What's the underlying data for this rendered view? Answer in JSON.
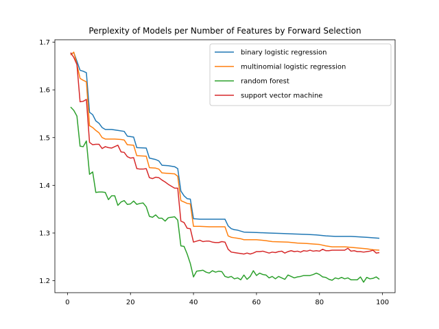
{
  "chart_data": {
    "type": "line",
    "title": "Perplexity of Models per Number of Features by Forward Selection",
    "xlabel": "",
    "ylabel": "",
    "xlim": [
      -4,
      104
    ],
    "ylim": [
      1.175,
      1.705
    ],
    "xticks": [
      0,
      20,
      40,
      60,
      80,
      100
    ],
    "yticks": [
      1.2,
      1.3,
      1.4,
      1.5,
      1.6,
      1.7
    ],
    "xtick_labels": [
      "0",
      "20",
      "40",
      "60",
      "80",
      "100"
    ],
    "ytick_labels": [
      "1.2",
      "1.3",
      "1.4",
      "1.5",
      "1.6",
      "1.7"
    ],
    "grid": false,
    "legend_position": "upper right",
    "series": [
      {
        "name": "binary logistic regression",
        "color": "#1f77b4",
        "points": [
          [
            1,
            1.675
          ],
          [
            2,
            1.678
          ],
          [
            3,
            1.66
          ],
          [
            4,
            1.641
          ],
          [
            5,
            1.639
          ],
          [
            6,
            1.636
          ],
          [
            7,
            1.553
          ],
          [
            8,
            1.548
          ],
          [
            9,
            1.535
          ],
          [
            10,
            1.53
          ],
          [
            11,
            1.521
          ],
          [
            12,
            1.517
          ],
          [
            14,
            1.517
          ],
          [
            16,
            1.515
          ],
          [
            18,
            1.513
          ],
          [
            19,
            1.503
          ],
          [
            21,
            1.501
          ],
          [
            22,
            1.479
          ],
          [
            25,
            1.478
          ],
          [
            26,
            1.457
          ],
          [
            28,
            1.454
          ],
          [
            29,
            1.451
          ],
          [
            30,
            1.442
          ],
          [
            32,
            1.441
          ],
          [
            34,
            1.439
          ],
          [
            35,
            1.435
          ],
          [
            36,
            1.388
          ],
          [
            37,
            1.378
          ],
          [
            38,
            1.372
          ],
          [
            39,
            1.371
          ],
          [
            40,
            1.33
          ],
          [
            42,
            1.329
          ],
          [
            45,
            1.329
          ],
          [
            48,
            1.329
          ],
          [
            50,
            1.329
          ],
          [
            51,
            1.315
          ],
          [
            52,
            1.309
          ],
          [
            53,
            1.307
          ],
          [
            54,
            1.306
          ],
          [
            55,
            1.304
          ],
          [
            56,
            1.302
          ],
          [
            60,
            1.301
          ],
          [
            64,
            1.3
          ],
          [
            68,
            1.299
          ],
          [
            72,
            1.298
          ],
          [
            76,
            1.297
          ],
          [
            79,
            1.296
          ],
          [
            82,
            1.294
          ],
          [
            85,
            1.293
          ],
          [
            90,
            1.293
          ],
          [
            95,
            1.291
          ],
          [
            99,
            1.289
          ]
        ]
      },
      {
        "name": "multinomial logistic regression",
        "color": "#ff7f0e",
        "points": [
          [
            1,
            1.673
          ],
          [
            2,
            1.679
          ],
          [
            3,
            1.653
          ],
          [
            4,
            1.624
          ],
          [
            5,
            1.62
          ],
          [
            6,
            1.617
          ],
          [
            7,
            1.525
          ],
          [
            8,
            1.521
          ],
          [
            9,
            1.515
          ],
          [
            10,
            1.51
          ],
          [
            11,
            1.5
          ],
          [
            12,
            1.497
          ],
          [
            15,
            1.497
          ],
          [
            17,
            1.496
          ],
          [
            18,
            1.495
          ],
          [
            19,
            1.485
          ],
          [
            21,
            1.484
          ],
          [
            22,
            1.462
          ],
          [
            25,
            1.461
          ],
          [
            26,
            1.437
          ],
          [
            28,
            1.436
          ],
          [
            29,
            1.434
          ],
          [
            30,
            1.426
          ],
          [
            32,
            1.425
          ],
          [
            34,
            1.424
          ],
          [
            35,
            1.419
          ],
          [
            36,
            1.368
          ],
          [
            37,
            1.365
          ],
          [
            38,
            1.362
          ],
          [
            39,
            1.361
          ],
          [
            40,
            1.314
          ],
          [
            42,
            1.314
          ],
          [
            45,
            1.313
          ],
          [
            48,
            1.313
          ],
          [
            50,
            1.313
          ],
          [
            51,
            1.294
          ],
          [
            52,
            1.291
          ],
          [
            53,
            1.29
          ],
          [
            54,
            1.289
          ],
          [
            55,
            1.288
          ],
          [
            56,
            1.286
          ],
          [
            60,
            1.286
          ],
          [
            63,
            1.284
          ],
          [
            65,
            1.282
          ],
          [
            70,
            1.281
          ],
          [
            73,
            1.279
          ],
          [
            76,
            1.278
          ],
          [
            78,
            1.277
          ],
          [
            80,
            1.276
          ],
          [
            82,
            1.273
          ],
          [
            84,
            1.271
          ],
          [
            88,
            1.271
          ],
          [
            90,
            1.27
          ],
          [
            95,
            1.267
          ],
          [
            97,
            1.265
          ],
          [
            99,
            1.264
          ]
        ]
      },
      {
        "name": "random forest",
        "color": "#2ca02c",
        "points": [
          [
            1,
            1.564
          ],
          [
            2,
            1.557
          ],
          [
            3,
            1.545
          ],
          [
            4,
            1.482
          ],
          [
            5,
            1.481
          ],
          [
            6,
            1.493
          ],
          [
            7,
            1.423
          ],
          [
            8,
            1.428
          ],
          [
            9,
            1.385
          ],
          [
            10,
            1.386
          ],
          [
            11,
            1.386
          ],
          [
            12,
            1.385
          ],
          [
            13,
            1.37
          ],
          [
            14,
            1.378
          ],
          [
            15,
            1.378
          ],
          [
            16,
            1.358
          ],
          [
            17,
            1.365
          ],
          [
            18,
            1.368
          ],
          [
            19,
            1.36
          ],
          [
            20,
            1.361
          ],
          [
            21,
            1.367
          ],
          [
            22,
            1.36
          ],
          [
            23,
            1.362
          ],
          [
            24,
            1.363
          ],
          [
            25,
            1.355
          ],
          [
            26,
            1.335
          ],
          [
            27,
            1.333
          ],
          [
            28,
            1.338
          ],
          [
            29,
            1.331
          ],
          [
            30,
            1.331
          ],
          [
            31,
            1.325
          ],
          [
            32,
            1.332
          ],
          [
            33,
            1.333
          ],
          [
            34,
            1.334
          ],
          [
            35,
            1.327
          ],
          [
            36,
            1.273
          ],
          [
            37,
            1.272
          ],
          [
            38,
            1.256
          ],
          [
            39,
            1.236
          ],
          [
            40,
            1.208
          ],
          [
            41,
            1.22
          ],
          [
            42,
            1.221
          ],
          [
            43,
            1.222
          ],
          [
            44,
            1.218
          ],
          [
            45,
            1.216
          ],
          [
            46,
            1.221
          ],
          [
            47,
            1.218
          ],
          [
            48,
            1.22
          ],
          [
            49,
            1.219
          ],
          [
            50,
            1.209
          ],
          [
            51,
            1.207
          ],
          [
            52,
            1.209
          ],
          [
            53,
            1.204
          ],
          [
            54,
            1.206
          ],
          [
            55,
            1.202
          ],
          [
            56,
            1.212
          ],
          [
            57,
            1.203
          ],
          [
            58,
            1.209
          ],
          [
            59,
            1.221
          ],
          [
            60,
            1.211
          ],
          [
            61,
            1.216
          ],
          [
            62,
            1.213
          ],
          [
            63,
            1.212
          ],
          [
            64,
            1.206
          ],
          [
            65,
            1.209
          ],
          [
            66,
            1.204
          ],
          [
            67,
            1.209
          ],
          [
            68,
            1.206
          ],
          [
            69,
            1.203
          ],
          [
            70,
            1.212
          ],
          [
            71,
            1.209
          ],
          [
            72,
            1.206
          ],
          [
            73,
            1.208
          ],
          [
            74,
            1.209
          ],
          [
            75,
            1.211
          ],
          [
            76,
            1.211
          ],
          [
            77,
            1.211
          ],
          [
            78,
            1.213
          ],
          [
            79,
            1.216
          ],
          [
            80,
            1.213
          ],
          [
            81,
            1.208
          ],
          [
            82,
            1.207
          ],
          [
            83,
            1.203
          ],
          [
            84,
            1.201
          ],
          [
            85,
            1.206
          ],
          [
            86,
            1.204
          ],
          [
            87,
            1.207
          ],
          [
            88,
            1.204
          ],
          [
            89,
            1.206
          ],
          [
            90,
            1.202
          ],
          [
            91,
            1.202
          ],
          [
            92,
            1.202
          ],
          [
            93,
            1.208
          ],
          [
            94,
            1.197
          ],
          [
            95,
            1.207
          ],
          [
            96,
            1.204
          ],
          [
            97,
            1.205
          ],
          [
            98,
            1.208
          ],
          [
            99,
            1.203
          ]
        ]
      },
      {
        "name": "support vector machine",
        "color": "#d62728",
        "points": [
          [
            1,
            1.678
          ],
          [
            2,
            1.668
          ],
          [
            3,
            1.653
          ],
          [
            4,
            1.575
          ],
          [
            5,
            1.576
          ],
          [
            6,
            1.58
          ],
          [
            7,
            1.49
          ],
          [
            8,
            1.485
          ],
          [
            9,
            1.486
          ],
          [
            10,
            1.486
          ],
          [
            11,
            1.477
          ],
          [
            12,
            1.481
          ],
          [
            13,
            1.479
          ],
          [
            14,
            1.478
          ],
          [
            15,
            1.481
          ],
          [
            16,
            1.484
          ],
          [
            17,
            1.47
          ],
          [
            18,
            1.469
          ],
          [
            19,
            1.46
          ],
          [
            20,
            1.457
          ],
          [
            21,
            1.458
          ],
          [
            22,
            1.435
          ],
          [
            23,
            1.434
          ],
          [
            24,
            1.434
          ],
          [
            25,
            1.435
          ],
          [
            26,
            1.416
          ],
          [
            27,
            1.414
          ],
          [
            28,
            1.417
          ],
          [
            29,
            1.416
          ],
          [
            30,
            1.411
          ],
          [
            31,
            1.407
          ],
          [
            32,
            1.402
          ],
          [
            33,
            1.398
          ],
          [
            34,
            1.394
          ],
          [
            35,
            1.394
          ],
          [
            36,
            1.325
          ],
          [
            37,
            1.322
          ],
          [
            38,
            1.31
          ],
          [
            39,
            1.309
          ],
          [
            40,
            1.281
          ],
          [
            41,
            1.283
          ],
          [
            42,
            1.285
          ],
          [
            43,
            1.282
          ],
          [
            44,
            1.283
          ],
          [
            45,
            1.283
          ],
          [
            46,
            1.281
          ],
          [
            47,
            1.28
          ],
          [
            48,
            1.28
          ],
          [
            49,
            1.282
          ],
          [
            50,
            1.281
          ],
          [
            51,
            1.266
          ],
          [
            52,
            1.26
          ],
          [
            53,
            1.259
          ],
          [
            54,
            1.258
          ],
          [
            55,
            1.257
          ],
          [
            56,
            1.256
          ],
          [
            57,
            1.258
          ],
          [
            58,
            1.256
          ],
          [
            59,
            1.258
          ],
          [
            60,
            1.261
          ],
          [
            61,
            1.261
          ],
          [
            62,
            1.262
          ],
          [
            63,
            1.26
          ],
          [
            64,
            1.258
          ],
          [
            65,
            1.26
          ],
          [
            66,
            1.259
          ],
          [
            67,
            1.261
          ],
          [
            68,
            1.262
          ],
          [
            69,
            1.258
          ],
          [
            70,
            1.261
          ],
          [
            71,
            1.263
          ],
          [
            72,
            1.261
          ],
          [
            73,
            1.262
          ],
          [
            74,
            1.26
          ],
          [
            75,
            1.263
          ],
          [
            76,
            1.262
          ],
          [
            77,
            1.264
          ],
          [
            78,
            1.262
          ],
          [
            79,
            1.263
          ],
          [
            80,
            1.262
          ],
          [
            81,
            1.266
          ],
          [
            82,
            1.263
          ],
          [
            83,
            1.263
          ],
          [
            84,
            1.264
          ],
          [
            85,
            1.264
          ],
          [
            86,
            1.264
          ],
          [
            87,
            1.264
          ],
          [
            88,
            1.264
          ],
          [
            89,
            1.268
          ],
          [
            90,
            1.262
          ],
          [
            91,
            1.263
          ],
          [
            92,
            1.261
          ],
          [
            93,
            1.261
          ],
          [
            94,
            1.26
          ],
          [
            95,
            1.261
          ],
          [
            96,
            1.262
          ],
          [
            97,
            1.264
          ],
          [
            98,
            1.258
          ],
          [
            99,
            1.259
          ]
        ]
      }
    ]
  }
}
